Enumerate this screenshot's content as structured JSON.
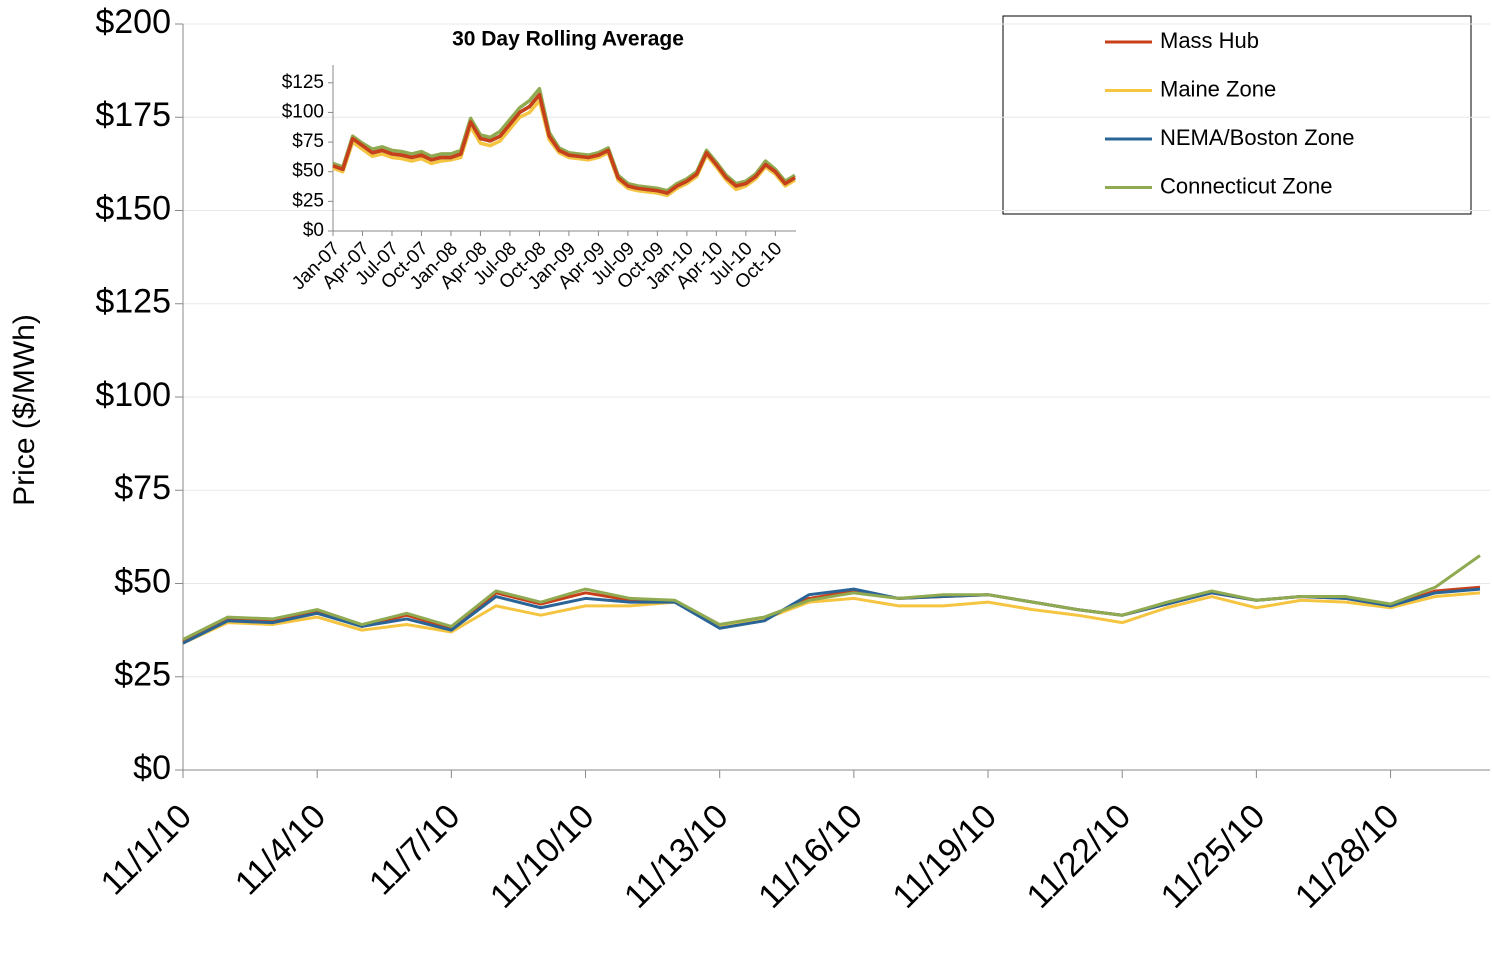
{
  "chart_data": [
    {
      "type": "line",
      "y_label": "Price ($/MWh)",
      "categories": [
        "11/1/10",
        null,
        null,
        "11/4/10",
        null,
        null,
        "11/7/10",
        null,
        null,
        "11/10/10",
        null,
        null,
        "11/13/10",
        null,
        null,
        "11/16/10",
        null,
        null,
        "11/19/10",
        null,
        null,
        "11/22/10",
        null,
        null,
        "11/25/10",
        null,
        null,
        "11/28/10",
        null,
        null
      ],
      "series": [
        {
          "name": "Mass Hub",
          "color": "#c8401a",
          "values": [
            34.5,
            40.5,
            40,
            42.5,
            38.5,
            41.5,
            38,
            47.5,
            44.5,
            47.5,
            45.5,
            45,
            38.5,
            40.5,
            46,
            48,
            46,
            46.5,
            47,
            45,
            43,
            41.5,
            44.5,
            47.5,
            45.5,
            46.5,
            46,
            44,
            48,
            49
          ]
        },
        {
          "name": "Maine Zone",
          "color": "#f5c542",
          "values": [
            34,
            39.5,
            39,
            41,
            37.5,
            39,
            37,
            44,
            41.5,
            44,
            44,
            45,
            38.5,
            40.5,
            45,
            46,
            44,
            44,
            45,
            43,
            41.5,
            39.5,
            43.5,
            46.5,
            43.5,
            45.5,
            45,
            43.5,
            46.5,
            47.5
          ]
        },
        {
          "name": "NEMA/Boston Zone",
          "color": "#2a6496",
          "values": [
            34,
            40,
            39.5,
            42,
            38.5,
            40.5,
            37.5,
            46.5,
            43.5,
            46,
            45,
            45,
            38,
            40,
            47,
            48.5,
            46,
            46.5,
            47,
            45,
            43,
            41.5,
            44.5,
            47.5,
            45.5,
            46.5,
            46,
            44,
            47.5,
            48.5
          ]
        },
        {
          "name": "Connecticut Zone",
          "color": "#8faa50",
          "values": [
            35,
            41,
            40.5,
            43,
            39,
            42,
            38.5,
            48,
            45,
            48.5,
            46,
            45.5,
            39,
            41,
            45.5,
            47.5,
            46,
            47,
            47,
            45,
            43,
            41.5,
            45,
            48,
            45.5,
            46.5,
            46.5,
            44.5,
            49,
            57.5
          ]
        }
      ],
      "ylim": [
        0,
        200
      ],
      "yticks": [
        {
          "value": 0,
          "label": "$0"
        },
        {
          "value": 25,
          "label": "$25"
        },
        {
          "value": 50,
          "label": "$50"
        },
        {
          "value": 75,
          "label": "$75"
        },
        {
          "value": 100,
          "label": "$100"
        },
        {
          "value": 125,
          "label": "$125"
        },
        {
          "value": 150,
          "label": "$150"
        },
        {
          "value": 175,
          "label": "$175"
        },
        {
          "value": 200,
          "label": "$200"
        }
      ],
      "grid": true,
      "legend": "top-right"
    },
    {
      "type": "line",
      "title": "30 Day Rolling Average",
      "categories": [
        "Jan-07",
        null,
        null,
        "Apr-07",
        null,
        null,
        "Jul-07",
        null,
        null,
        "Oct-07",
        null,
        null,
        "Jan-08",
        null,
        null,
        "Apr-08",
        null,
        null,
        "Jul-08",
        null,
        null,
        "Oct-08",
        null,
        null,
        "Jan-09",
        null,
        null,
        "Apr-09",
        null,
        null,
        "Jul-09",
        null,
        null,
        "Oct-09",
        null,
        null,
        "Jan-10",
        null,
        null,
        "Apr-10",
        null,
        null,
        "Jul-10",
        null,
        null,
        "Oct-10",
        null,
        null
      ],
      "series": [
        {
          "color": "#f5c542",
          "values": [
            53,
            50,
            75,
            69,
            63,
            65,
            62,
            61,
            59,
            61,
            57,
            59,
            60,
            62,
            88,
            74,
            72,
            76,
            86,
            96,
            100,
            110,
            77,
            66,
            62,
            61,
            60,
            62,
            66,
            43,
            36,
            34,
            33,
            32,
            30,
            36,
            40,
            46,
            64,
            54,
            43,
            35,
            38,
            44,
            54,
            48,
            38,
            43
          ]
        },
        {
          "color": "#2a6496",
          "values": [
            55,
            52,
            78,
            72,
            66,
            68,
            65,
            64,
            62,
            64,
            60,
            62,
            62,
            65,
            92,
            78,
            76,
            80,
            90,
            100,
            105,
            115,
            80,
            68,
            64,
            63,
            62,
            64,
            68,
            45,
            38,
            36,
            35,
            34,
            32,
            38,
            42,
            48,
            66,
            56,
            45,
            38,
            40,
            46,
            56,
            50,
            40,
            45
          ]
        },
        {
          "color": "#8faa50",
          "values": [
            57,
            54,
            80,
            74,
            69,
            71,
            68,
            67,
            65,
            67,
            63,
            65,
            65,
            68,
            95,
            81,
            79,
            84,
            94,
            104,
            110,
            120,
            83,
            70,
            66,
            65,
            64,
            66,
            70,
            47,
            40,
            38,
            37,
            36,
            34,
            40,
            44,
            50,
            68,
            58,
            47,
            40,
            42,
            48,
            59,
            52,
            42,
            47
          ]
        },
        {
          "color": "#c8401a",
          "values": [
            55,
            52,
            78,
            72,
            66,
            68,
            65,
            64,
            62,
            64,
            60,
            62,
            62,
            65,
            92,
            78,
            76,
            80,
            90,
            100,
            105,
            115,
            80,
            68,
            64,
            63,
            62,
            64,
            68,
            45,
            38,
            36,
            35,
            34,
            32,
            38,
            42,
            48,
            66,
            56,
            45,
            38,
            40,
            46,
            56,
            50,
            40,
            45
          ]
        }
      ],
      "ylim": [
        0,
        140
      ],
      "yticks": [
        {
          "value": 0,
          "label": "$0"
        },
        {
          "value": 25,
          "label": "$25"
        },
        {
          "value": 50,
          "label": "$50"
        },
        {
          "value": 75,
          "label": "$75"
        },
        {
          "value": 100,
          "label": "$100"
        },
        {
          "value": 125,
          "label": "$125"
        }
      ],
      "grid": false
    }
  ]
}
